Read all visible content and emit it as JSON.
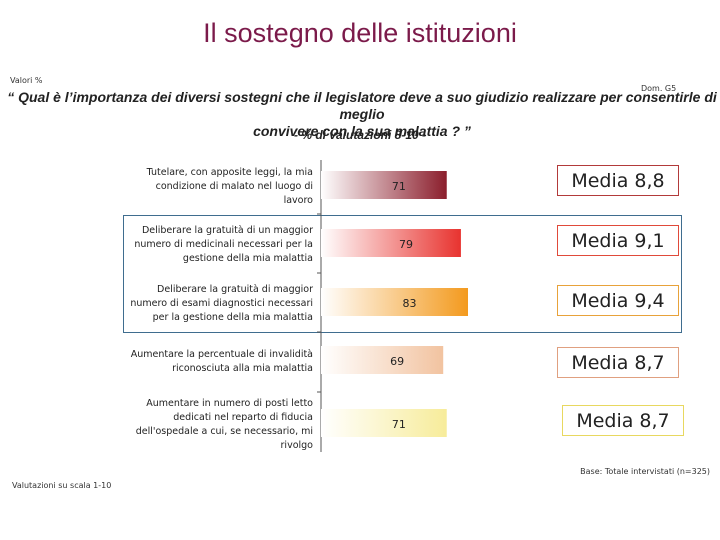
{
  "title": "Il sostegno delle istituzioni",
  "valori_label": "Valori %",
  "dom_ref": "Dom. G5",
  "question_line1": "“ Qual è l’importanza dei diversi sostegni che il legislatore deve a suo giudizio realizzare per consentirle di meglio",
  "question_line2": "convivere con la sua malattia ? ”",
  "subtitle": "- % di valutazioni 8-10 -",
  "base_note": "Base: Totale intervistati (n=325)",
  "scala_note": "Valutazioni su scala 1-10",
  "colors": {
    "title": "#7b1a4a",
    "bars": [
      "#8b1e2c",
      "#e8332f",
      "#f39a1e",
      "#f2c3a0",
      "#f7ec9a"
    ],
    "media_borders": [
      "#b23a3a",
      "#e04a3a",
      "#e8a23a",
      "#e0a080",
      "#e8d860"
    ]
  },
  "chart_data": {
    "type": "bar",
    "orientation": "horizontal",
    "categories": [
      [
        "Tutelare, con apposite leggi, la mia",
        "condizione di malato nel luogo di",
        "lavoro"
      ],
      [
        "Deliberare la gratuità di un maggior",
        "numero di medicinali necessari per la",
        "gestione della mia malattia"
      ],
      [
        "Deliberare la gratuità di maggior",
        "numero di esami diagnostici necessari",
        "per la gestione della mia malattia"
      ],
      [
        "Aumentare la percentuale di invalidità",
        "riconosciuta alla mia malattia"
      ],
      [
        "Aumentare in numero di posti letto",
        "dedicati nel reparto di fiducia",
        "dell'ospedale a cui, se necessario, mi",
        "rivolgo"
      ]
    ],
    "values": [
      71,
      79,
      83,
      69,
      71
    ],
    "value_labels": [
      "71",
      "79",
      "83",
      "69",
      "71"
    ],
    "media": [
      "Media 8,8",
      "Media 9,1",
      "Media 9,4",
      "Media 8,7",
      "Media 8,7"
    ],
    "xlim": [
      0,
      100
    ],
    "legend": "none",
    "grid": false
  }
}
